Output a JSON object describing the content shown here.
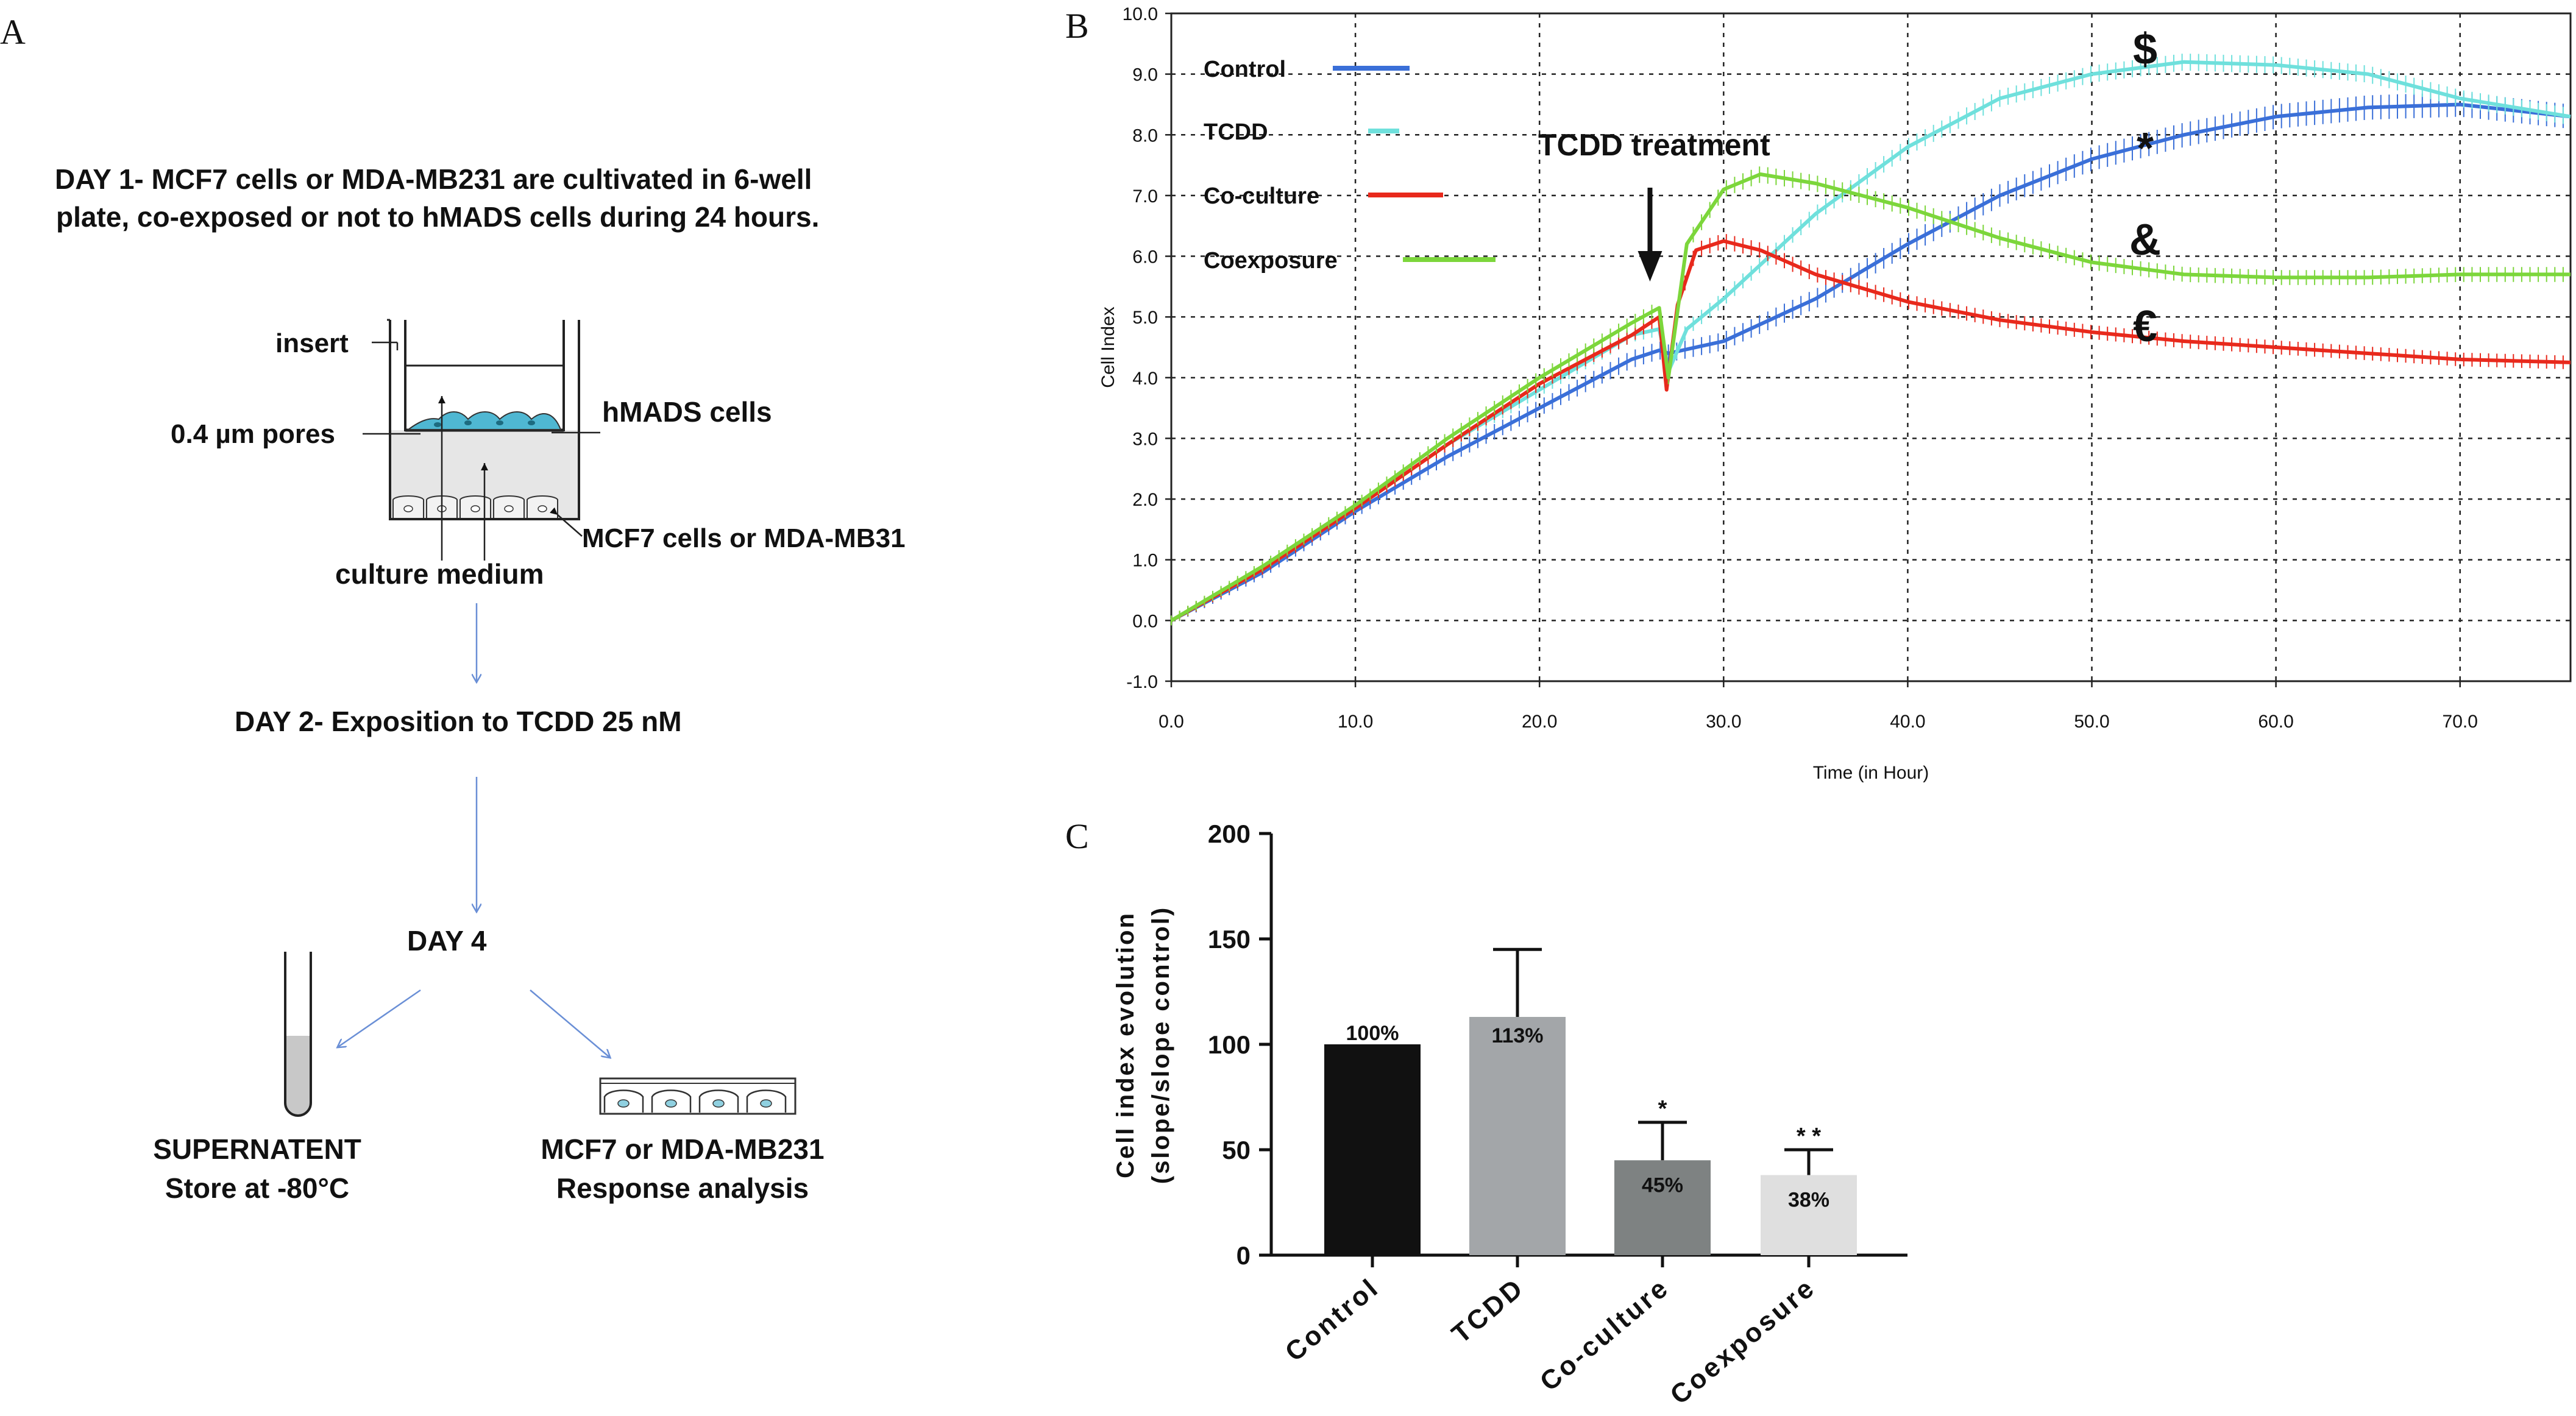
{
  "panel_a": {
    "letter": "A",
    "day1_line1": "DAY 1-  MCF7 cells or MDA-MB231 are cultivated in 6-well",
    "day1_line2": "plate, co-exposed or not to hMADS cells  during 24 hours.",
    "label_insert": "insert",
    "label_pores": "0.4 µm pores",
    "label_hmads": "hMADS  cells",
    "label_mcf7": "MCF7 cells or MDA-MB31",
    "label_medium": "culture medium",
    "day2": "DAY 2- Exposition to TCDD 25 nM",
    "day4": "DAY 4",
    "supernatant_line1": "SUPERNATENT",
    "supernatant_line2": "Store at -80°C",
    "response_line1": "MCF7 or MDA-MB231",
    "response_line2": "Response analysis",
    "colors": {
      "arrow": "#6a8fd6",
      "hmads": "#4fb7d2",
      "tube_fill": "#c8c8c8",
      "well_fill": "#e6e6e6"
    }
  },
  "chart_data": [
    {
      "panel": "B",
      "type": "line",
      "xlabel": "Time (in Hour)",
      "ylabel": "Cell Index",
      "xlim": [
        0,
        76
      ],
      "ylim": [
        -1,
        10
      ],
      "xticks": [
        "0.0",
        "10.0",
        "20.0",
        "30.0",
        "40.0",
        "50.0",
        "60.0",
        "70.0"
      ],
      "yticks": [
        "-1.0",
        "0.0",
        "1.0",
        "2.0",
        "3.0",
        "4.0",
        "5.0",
        "6.0",
        "7.0",
        "8.0",
        "9.0",
        "10.0"
      ],
      "grid": true,
      "legend_position": "top-left",
      "annotation": "TCDD treatment",
      "annotation_x": 26,
      "significance_marks": [
        "$",
        "*",
        "&",
        "€"
      ],
      "series": [
        {
          "name": "Control",
          "color": "#3a6fd8",
          "x": [
            0,
            5,
            10,
            15,
            20,
            25,
            26.5,
            27,
            30,
            35,
            40,
            45,
            50,
            55,
            60,
            65,
            70,
            76
          ],
          "y": [
            0,
            0.8,
            1.8,
            2.7,
            3.5,
            4.3,
            4.45,
            4.4,
            4.6,
            5.3,
            6.2,
            7.0,
            7.6,
            8.0,
            8.3,
            8.45,
            8.5,
            8.3
          ]
        },
        {
          "name": "TCDD",
          "color": "#6fe0dc",
          "x": [
            0,
            5,
            10,
            15,
            20,
            25,
            26.5,
            27,
            28,
            30,
            35,
            40,
            45,
            50,
            55,
            60,
            65,
            70,
            76
          ],
          "y": [
            0,
            0.85,
            1.85,
            2.9,
            3.8,
            4.7,
            4.8,
            4.1,
            4.8,
            5.3,
            6.7,
            7.8,
            8.6,
            9.0,
            9.2,
            9.15,
            9.0,
            8.6,
            8.3
          ]
        },
        {
          "name": "Co-culture",
          "color": "#e8291c",
          "x": [
            0,
            5,
            10,
            15,
            20,
            25,
            26.5,
            26.9,
            27.5,
            28.5,
            30,
            32,
            35,
            40,
            45,
            50,
            55,
            60,
            65,
            70,
            76
          ],
          "y": [
            0,
            0.85,
            1.85,
            2.9,
            3.9,
            4.7,
            5.0,
            3.8,
            5.2,
            6.1,
            6.25,
            6.1,
            5.7,
            5.25,
            4.95,
            4.75,
            4.6,
            4.5,
            4.4,
            4.3,
            4.25
          ]
        },
        {
          "name": "Coexposure",
          "color": "#7cd63b",
          "x": [
            0,
            5,
            10,
            15,
            20,
            25,
            26.5,
            27,
            28,
            30,
            32,
            35,
            40,
            45,
            50,
            55,
            60,
            65,
            70,
            76
          ],
          "y": [
            0,
            0.9,
            1.9,
            3.0,
            4.0,
            4.9,
            5.15,
            4.0,
            6.2,
            7.1,
            7.35,
            7.2,
            6.8,
            6.3,
            5.9,
            5.7,
            5.65,
            5.65,
            5.7,
            5.7
          ]
        }
      ]
    },
    {
      "panel": "C",
      "type": "bar",
      "ylabel_line1": "Cell index evolution",
      "ylabel_line2": "(slope/slope control)",
      "ylim": [
        0,
        200
      ],
      "yticks": [
        "0",
        "50",
        "100",
        "150",
        "200"
      ],
      "categories": [
        "Control",
        "TCDD",
        "Co-culture",
        "Coexposure"
      ],
      "values": [
        100,
        113,
        45,
        38
      ],
      "error_up": [
        0,
        32,
        18,
        12
      ],
      "value_labels": [
        "100%",
        "113%",
        "45%",
        "38%"
      ],
      "significance": [
        "",
        "",
        "*",
        "* *"
      ],
      "colors": [
        "#111111",
        "#a3a6a9",
        "#7e8282",
        "#dfdfdf"
      ]
    }
  ]
}
